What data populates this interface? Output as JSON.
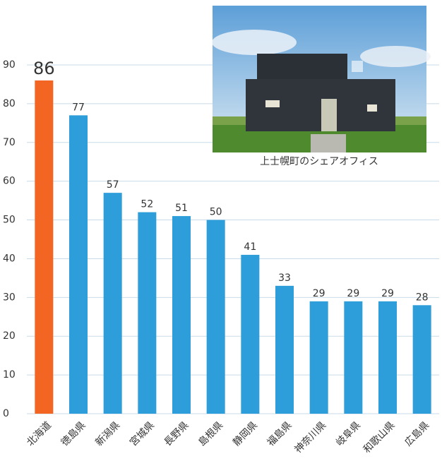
{
  "chart_data": {
    "type": "bar",
    "caption": "上士幌町のシェアオフィス",
    "categories": [
      "北海道",
      "徳島県",
      "新潟県",
      "宮城県",
      "長野県",
      "島根県",
      "静岡県",
      "福島県",
      "神奈川県",
      "岐阜県",
      "和歌山県",
      "広島県"
    ],
    "values": [
      86,
      77,
      57,
      52,
      51,
      50,
      41,
      33,
      29,
      29,
      29,
      28
    ],
    "colors": [
      "#f26522",
      "#2d9ed9",
      "#2d9ed9",
      "#2d9ed9",
      "#2d9ed9",
      "#2d9ed9",
      "#2d9ed9",
      "#2d9ed9",
      "#2d9ed9",
      "#2d9ed9",
      "#2d9ed9",
      "#2d9ed9"
    ],
    "ylim": [
      0,
      90
    ],
    "yticks": [
      0,
      10,
      20,
      30,
      40,
      50,
      60,
      70,
      80,
      90
    ],
    "grid": true
  }
}
